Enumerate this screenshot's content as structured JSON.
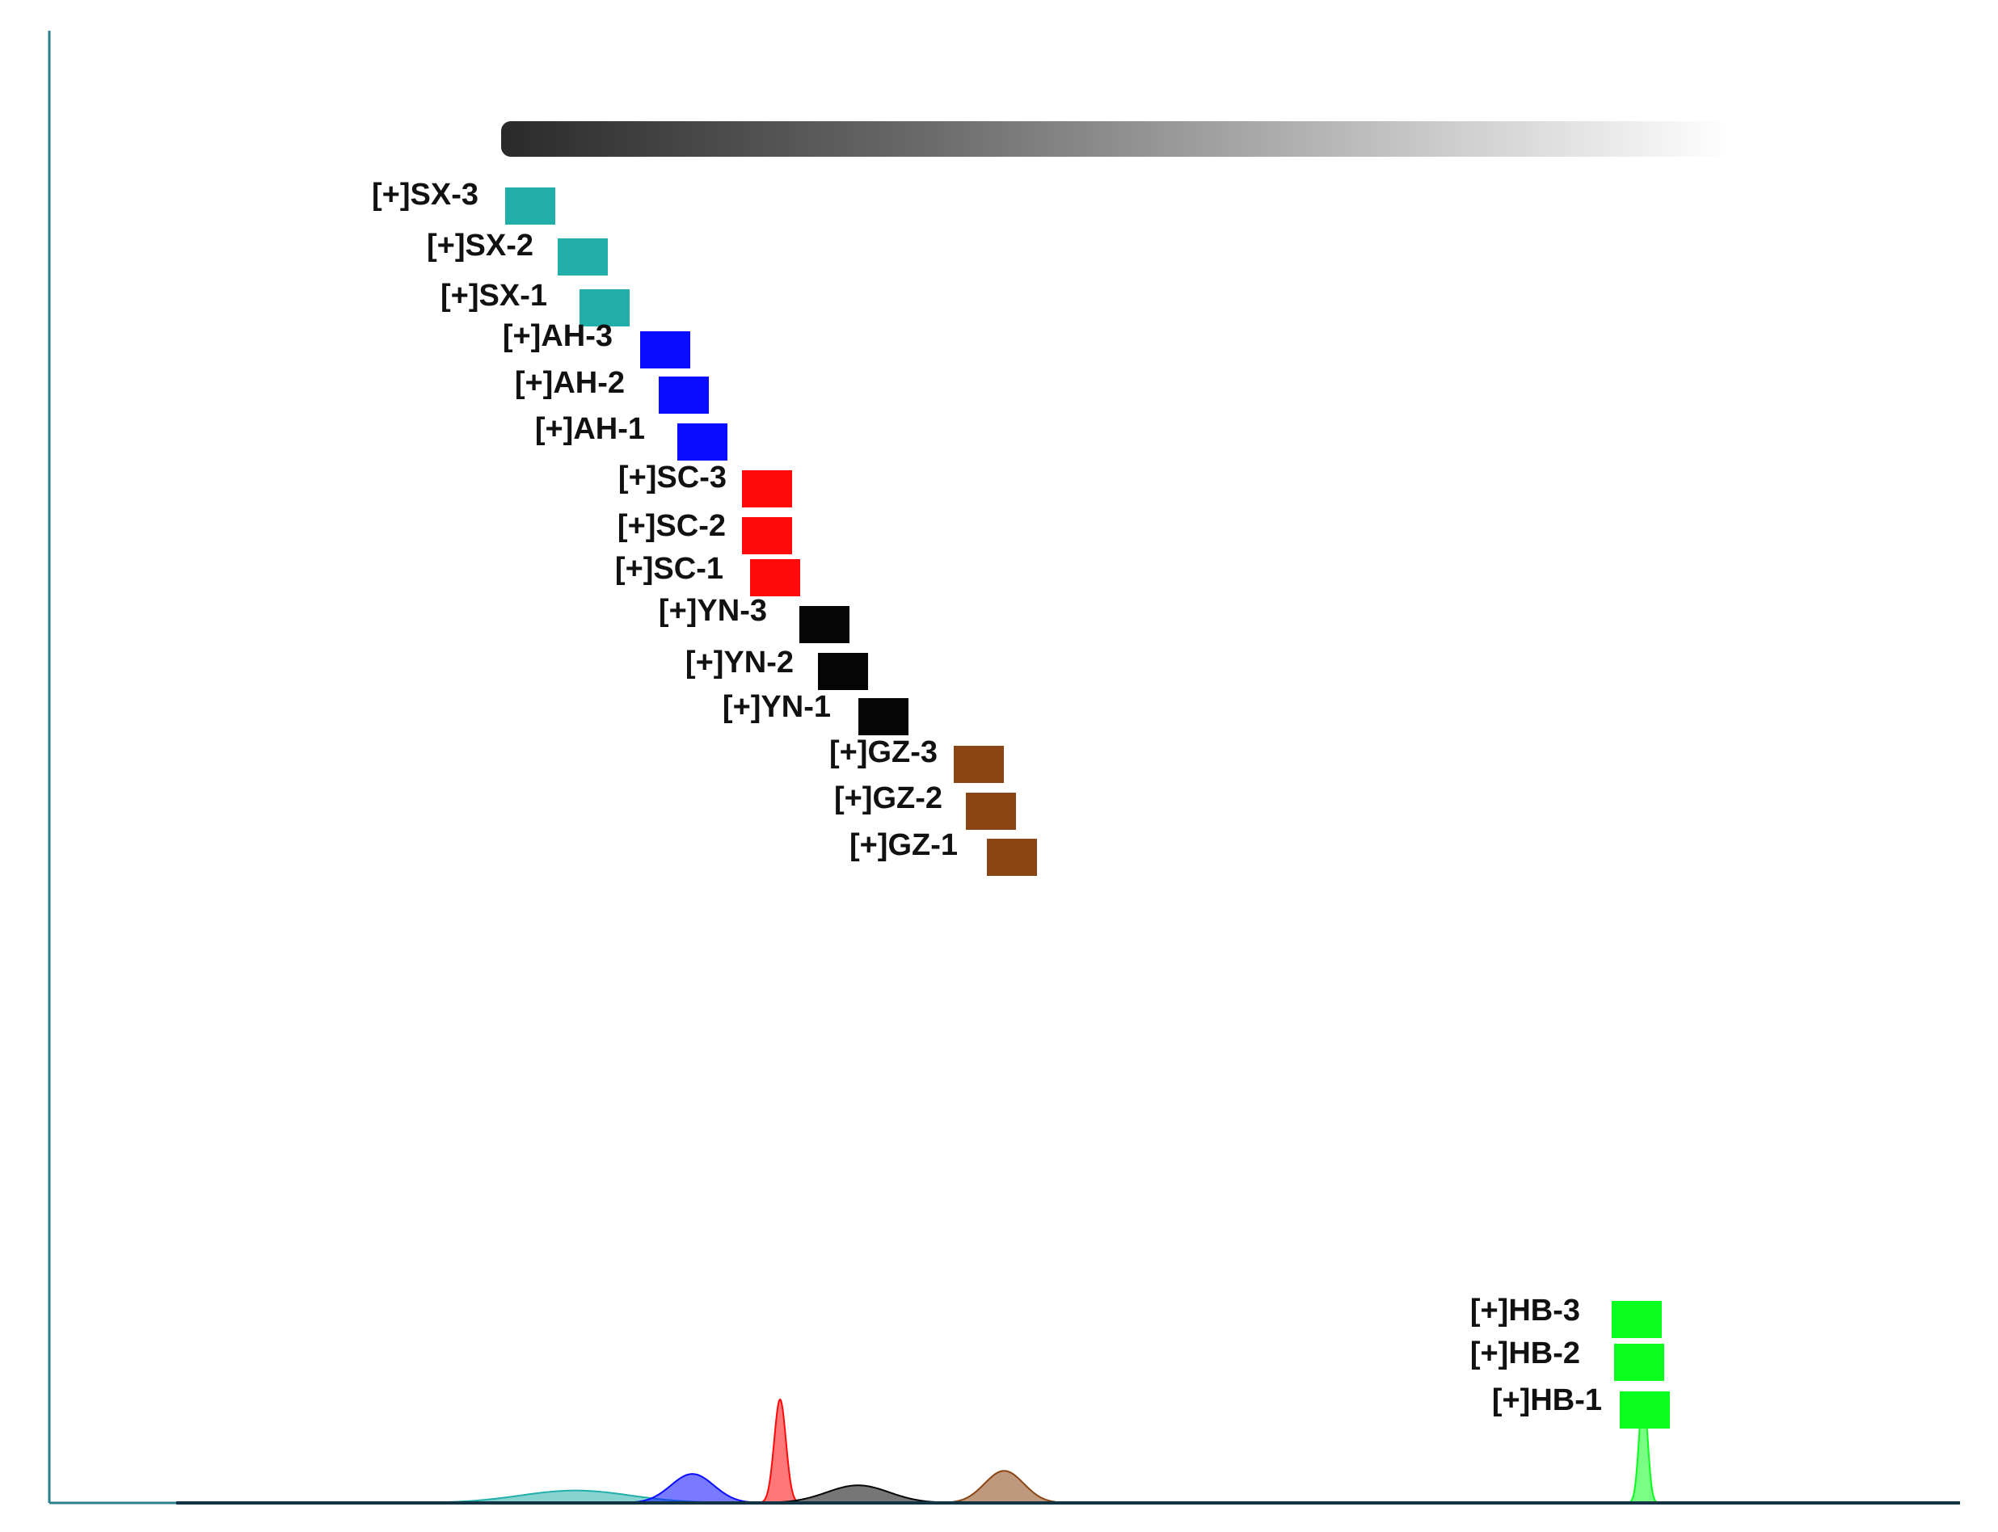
{
  "colors": {
    "SX": "#22aea9",
    "AH": "#0a0cff",
    "SC": "#ff0a0a",
    "YN": "#050505",
    "GZ": "#8b4513",
    "HB": "#0aff1f",
    "axis": "#2c7f8c",
    "baseline": "#123444"
  },
  "chart_data": {
    "type": "area",
    "samples": [
      {
        "label": "[+]SX-3",
        "group": "SX",
        "rank": 1
      },
      {
        "label": "[+]SX-2",
        "group": "SX",
        "rank": 2
      },
      {
        "label": "[+]SX-1",
        "group": "SX",
        "rank": 3
      },
      {
        "label": "[+]AH-3",
        "group": "AH",
        "rank": 4
      },
      {
        "label": "[+]AH-2",
        "group": "AH",
        "rank": 5
      },
      {
        "label": "[+]AH-1",
        "group": "AH",
        "rank": 6
      },
      {
        "label": "[+]SC-3",
        "group": "SC",
        "rank": 7
      },
      {
        "label": "[+]SC-2",
        "group": "SC",
        "rank": 8
      },
      {
        "label": "[+]SC-1",
        "group": "SC",
        "rank": 9
      },
      {
        "label": "[+]YN-3",
        "group": "YN",
        "rank": 10
      },
      {
        "label": "[+]YN-2",
        "group": "YN",
        "rank": 11
      },
      {
        "label": "[+]YN-1",
        "group": "YN",
        "rank": 12
      },
      {
        "label": "[+]GZ-3",
        "group": "GZ",
        "rank": 13
      },
      {
        "label": "[+]GZ-2",
        "group": "GZ",
        "rank": 14
      },
      {
        "label": "[+]GZ-1",
        "group": "GZ",
        "rank": 15
      },
      {
        "label": "[+]HB-3",
        "group": "HB",
        "rank": 16
      },
      {
        "label": "[+]HB-2",
        "group": "HB",
        "rank": 17
      },
      {
        "label": "[+]HB-1",
        "group": "HB",
        "rank": 18
      }
    ],
    "peaks": [
      {
        "group": "SX",
        "center": 0.27,
        "height": 0.12,
        "width": 0.028
      },
      {
        "group": "AH",
        "center": 0.33,
        "height": 0.28,
        "width": 0.011
      },
      {
        "group": "SC",
        "center": 0.375,
        "height": 1.0,
        "width": 0.003
      },
      {
        "group": "YN",
        "center": 0.415,
        "height": 0.17,
        "width": 0.016
      },
      {
        "group": "GZ",
        "center": 0.49,
        "height": 0.31,
        "width": 0.01
      },
      {
        "group": "HB",
        "center": 0.818,
        "height": 1.05,
        "width": 0.0022
      }
    ]
  }
}
